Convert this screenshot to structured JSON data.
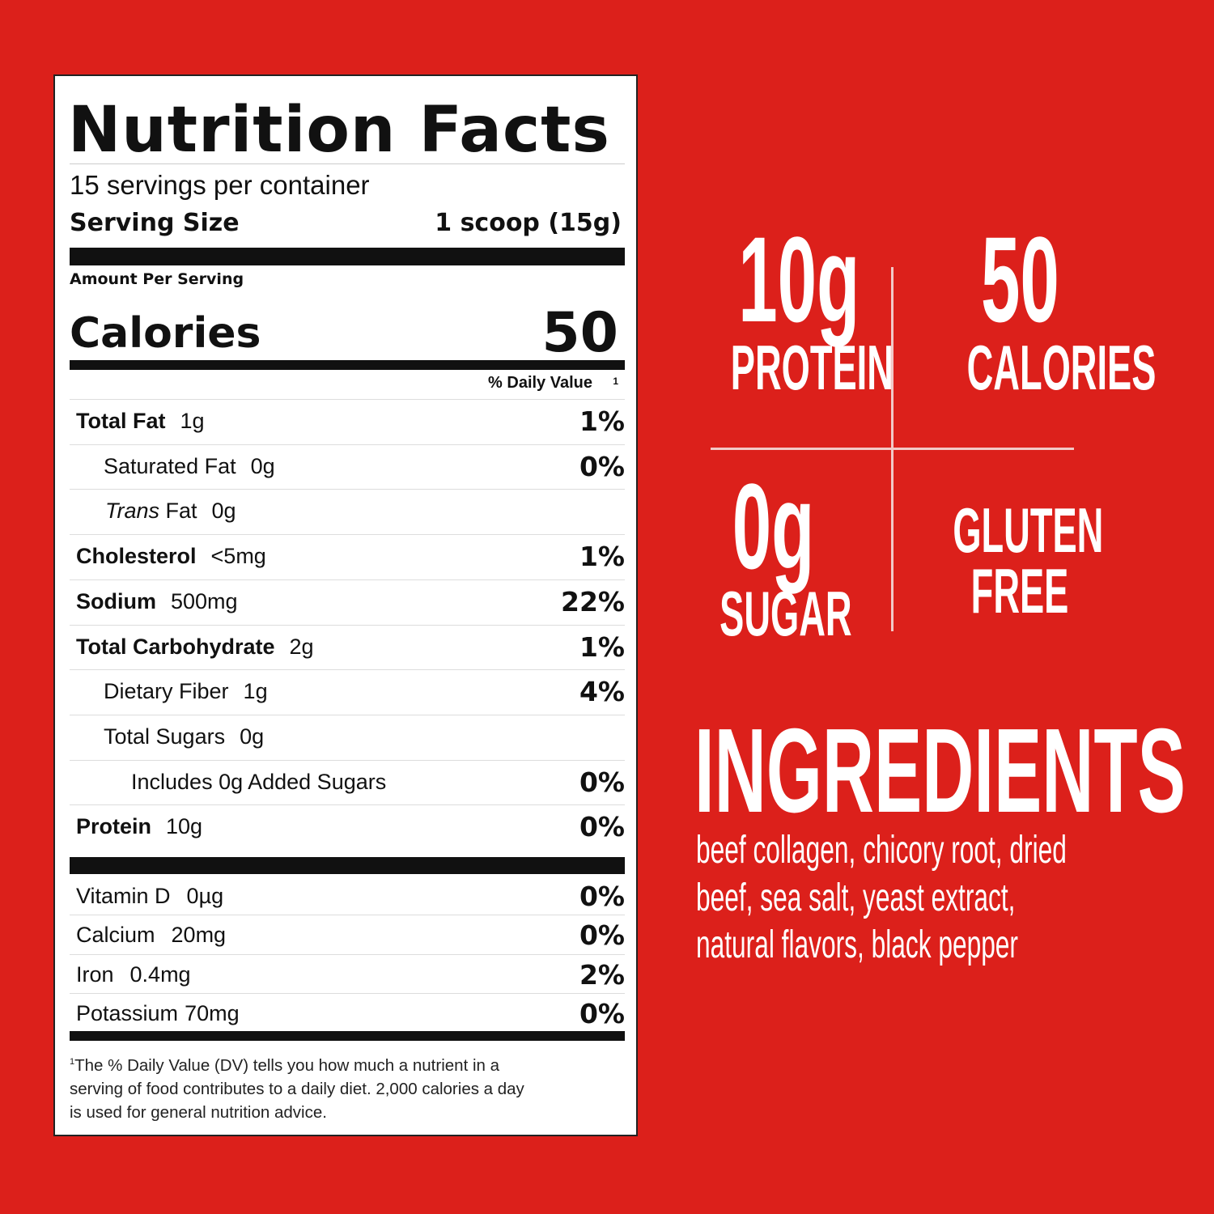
{
  "nutrition": {
    "title": "Nutrition Facts",
    "servings": "15 servings per container",
    "serving_size_label": "Serving Size",
    "serving_size_value": "1 scoop (15g)",
    "amount_per_serving": "Amount Per Serving",
    "calories_label": "Calories",
    "calories_value": "50",
    "daily_value_header": "% Daily Value",
    "daily_value_footnote_mark": "1",
    "nutrients": [
      {
        "name": "Total Fat",
        "amount": "1g",
        "dv": "1%"
      },
      {
        "name": "Saturated Fat",
        "amount": "0g",
        "dv": "0%"
      },
      {
        "name": "Trans",
        "name_suffix": " Fat",
        "amount": "0g",
        "dv": ""
      },
      {
        "name": "Cholesterol",
        "amount": "<5mg",
        "dv": "1%"
      },
      {
        "name": "Sodium",
        "amount": "500mg",
        "dv": "22%"
      },
      {
        "name": "Total Carbohydrate",
        "amount": "2g",
        "dv": "1%"
      },
      {
        "name": "Dietary Fiber",
        "amount": "1g",
        "dv": "4%"
      },
      {
        "name": "Total Sugars",
        "amount": "0g",
        "dv": ""
      },
      {
        "name": "Includes 0g Added Sugars",
        "amount": "",
        "dv": "0%"
      },
      {
        "name": "Protein",
        "amount": "10g",
        "dv": "0%"
      }
    ],
    "vitamins": [
      {
        "name": "Vitamin D",
        "amount": "0µg",
        "dv": "0%"
      },
      {
        "name": "Calcium",
        "amount": "20mg",
        "dv": "0%"
      },
      {
        "name": "Iron",
        "amount": "0.4mg",
        "dv": "2%"
      },
      {
        "name": "Potassium",
        "amount": "70mg",
        "dv": "0%"
      }
    ],
    "footnote_mark": "1",
    "footnote": "The % Daily Value (DV) tells you how much a nutrient in a serving of food contributes to a daily diet. 2,000 calories a day is used for general nutrition advice."
  },
  "highlights": {
    "protein_value": "10g",
    "protein_label": "PROTEIN",
    "calories_value": "50",
    "calories_label": "CALORIES",
    "sugar_value": "0g",
    "sugar_label": "SUGAR",
    "gluten_line1": "GLUTEN",
    "gluten_line2": "FREE"
  },
  "ingredients": {
    "heading": "INGREDIENTS",
    "lines": [
      "beef collagen, chicory root, dried",
      "beef, sea salt, yeast extract,",
      "natural flavors, black pepper"
    ]
  },
  "colors": {
    "background": "#dc201b",
    "panel": "#ffffff",
    "text": "#111111"
  }
}
